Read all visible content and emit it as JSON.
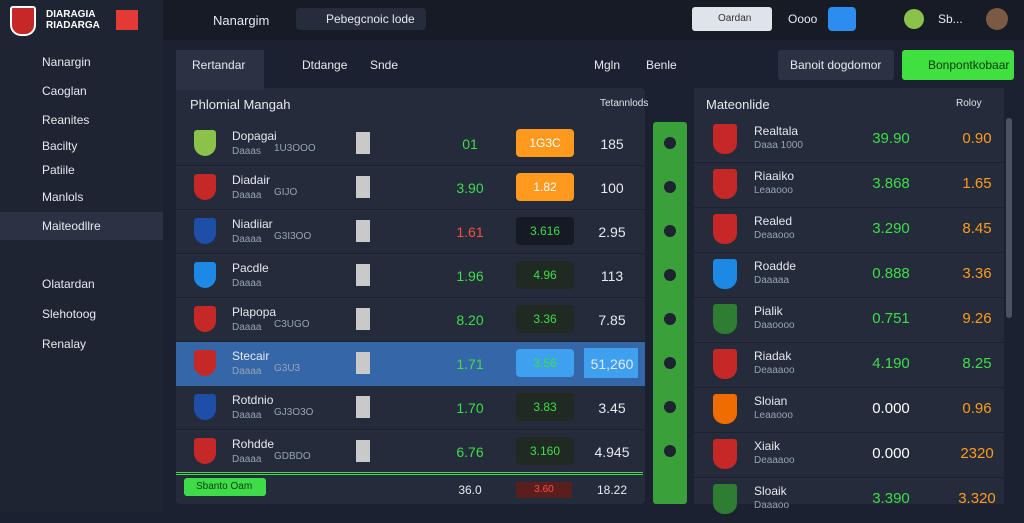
{
  "sidebar": {
    "brand": [
      "DIARAGIA",
      "RIADARGA"
    ],
    "menu": [
      "Nanargin",
      "Caoglan",
      "Reanites",
      "Bacilty",
      "Patiile",
      "Manlols",
      "Maiteodllre"
    ],
    "menu2": [
      "Olatardan",
      "Slehotoog",
      "Renalay"
    ]
  },
  "topbar": {
    "title": "Nanargim",
    "search": "Pebegcnoic lode",
    "filter": "Oardan",
    "chip": "Oooo",
    "user": "Sb..."
  },
  "main": {
    "tabs": [
      "Rertandar",
      "Dtdange",
      "Snde"
    ],
    "buttons": [
      "Mgln",
      "Benle"
    ],
    "actions": [
      "Banoit dogdomor",
      "Bonpontkobaar"
    ],
    "title": "Phlomial Mangah",
    "filter": "Tetannlods",
    "rows": [
      {
        "name": "Dopagai",
        "sub": "Daaas",
        "tag": "1U3OOO",
        "odds1": "01",
        "odds2": "1G3C",
        "odds3": "185"
      },
      {
        "name": "Diadair",
        "sub": "Daaaa",
        "tag": "GIJO",
        "odds1": "3.90",
        "odds2": "1.82",
        "odds3": "100"
      },
      {
        "name": "Niadiiar",
        "sub": "Daaaa",
        "tag": "G3I3OO",
        "odds1": "1.61",
        "odds2": "3.616",
        "odds3": "2.95"
      },
      {
        "name": "Pacdle",
        "sub": "Daaaa",
        "tag": "",
        "odds1": "1.96",
        "odds2": "4.96",
        "odds3": "113"
      },
      {
        "name": "Plapopa",
        "sub": "Daaaa",
        "tag": "C3UGO",
        "odds1": "8.20",
        "odds2": "3.36",
        "odds3": "7.85"
      },
      {
        "name": "Stecair",
        "sub": "Daaaa",
        "tag": "G3U3",
        "odds1": "1.71",
        "odds2": "3.56",
        "odds3": "51,260"
      },
      {
        "name": "Rotdnio",
        "sub": "Daaaa",
        "tag": "GJ3O3O",
        "odds1": "1.70",
        "odds2": "3.83",
        "odds3": "3.45"
      },
      {
        "name": "Rohdde",
        "sub": "Daaaa",
        "tag": "GDBDO",
        "odds1": "6.76",
        "odds2": "3.160",
        "odds3": "4.945"
      }
    ],
    "footer": {
      "button": "Sbanto Oam",
      "odds1": "36.0",
      "odds2": "3.60",
      "odds3": "18.22"
    }
  },
  "right": {
    "title": "Mateonlide",
    "filter": "Roloy",
    "rows": [
      {
        "name": "Realtala",
        "sub": "Daaa 1000",
        "odds1": "39.90",
        "odds2": "0.90"
      },
      {
        "name": "Riaaiko",
        "sub": "Leaaooo",
        "odds1": "3.868",
        "odds2": "1.65"
      },
      {
        "name": "Realed",
        "sub": "Deaaooo",
        "odds1": "3.290",
        "odds2": "8.45"
      },
      {
        "name": "Roadde",
        "sub": "Daaaaa",
        "odds1": "0.888",
        "odds2": "3.36"
      },
      {
        "name": "Pialik",
        "sub": "Daaoooo",
        "odds1": "0.751",
        "odds2": "9.26"
      },
      {
        "name": "Riadak",
        "sub": "Deaaaoo",
        "odds1": "4.190",
        "odds2": "8.25"
      },
      {
        "name": "Sloian",
        "sub": "Leaaooo",
        "odds1": "0.000",
        "odds2": "0.96"
      },
      {
        "name": "Xiaik",
        "sub": "Deaaaoo",
        "odds1": "0.000",
        "odds2": "2320"
      },
      {
        "name": "Sloaik",
        "sub": "Daaaoo",
        "odds1": "3.390",
        "odds2": "3.320"
      }
    ]
  }
}
